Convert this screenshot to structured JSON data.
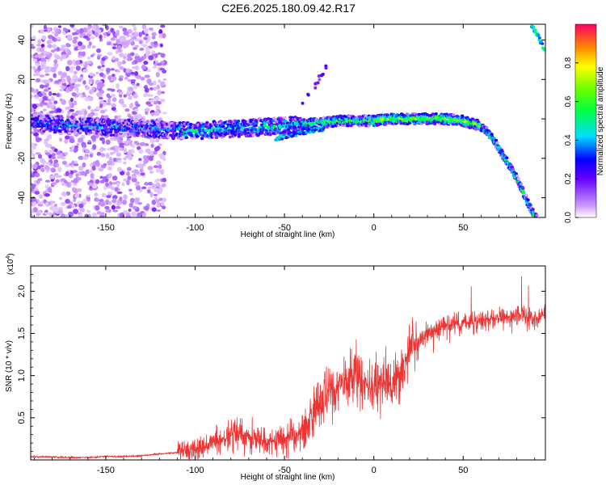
{
  "title": "C2E6.2025.180.09.42.R17",
  "chart_data": [
    {
      "type": "heatmap",
      "xlabel": "Height of straight line (km)",
      "ylabel": "Frequency (Hz)",
      "xlim": [
        -192,
        96
      ],
      "ylim": [
        -50,
        48
      ],
      "xticks": [
        -150,
        -100,
        -50,
        0,
        50
      ],
      "yticks": [
        -40,
        -20,
        0,
        20,
        40
      ],
      "grid": false,
      "colorbar": {
        "label": "Normalized spectral amplitude",
        "range": [
          0,
          1
        ],
        "ticks": [
          0.0,
          0.2,
          0.4,
          0.6,
          0.8
        ],
        "tick_labels": [
          "0.0",
          "0.2",
          "0.4",
          "0.6",
          "0.8"
        ]
      },
      "ridge": {
        "x": [
          -192,
          -170,
          -150,
          -130,
          -110,
          -100,
          -80,
          -60,
          -40,
          -30,
          -20,
          -10,
          0,
          10,
          20,
          30,
          40,
          50,
          58,
          63,
          68,
          72,
          76,
          80,
          84,
          88,
          92
        ],
        "y": [
          -2,
          -3,
          -4,
          -5,
          -6,
          -6,
          -5,
          -4,
          -3,
          -2,
          -1,
          -1,
          -1,
          0,
          0,
          0,
          0,
          -1,
          -3,
          -6,
          -12,
          -18,
          -24,
          -30,
          -38,
          -46,
          -52
        ]
      },
      "upper_branch": {
        "x": [
          88,
          92,
          96
        ],
        "y": [
          48,
          42,
          34
        ]
      },
      "lower_branch": {
        "x": [
          -55,
          -45,
          -35,
          -28
        ],
        "y": [
          -10,
          -8,
          -6,
          -5
        ]
      }
    },
    {
      "type": "line",
      "xlabel": "Height of straight line (km)",
      "ylabel": "SNR (10 * v/v)",
      "yscale_label": "(x10",
      "yscale_exp": "4",
      "xlim": [
        -192,
        96
      ],
      "ylim": [
        0,
        2.3
      ],
      "xticks": [
        -150,
        -100,
        -50,
        0,
        50
      ],
      "yticks": [
        0.5,
        1.0,
        1.5,
        2.0
      ],
      "ytick_labels": [
        "0.5",
        "1.0",
        "1.5",
        "2.0"
      ],
      "color": "#ee3333",
      "series": [
        {
          "x": [
            -192,
            -175,
            -160,
            -150,
            -140,
            -130,
            -120,
            -110,
            -100,
            -95,
            -90,
            -85,
            -80,
            -75,
            -70,
            -65,
            -60,
            -55,
            -50,
            -45,
            -40,
            -35,
            -30,
            -25,
            -20,
            -15,
            -10,
            -5,
            0,
            5,
            10,
            15,
            20,
            25,
            30,
            40,
            50,
            60,
            70,
            80,
            90,
            96
          ],
          "y": [
            0.04,
            0.03,
            0.03,
            0.04,
            0.04,
            0.05,
            0.07,
            0.09,
            0.12,
            0.16,
            0.2,
            0.24,
            0.28,
            0.3,
            0.27,
            0.25,
            0.22,
            0.22,
            0.25,
            0.28,
            0.35,
            0.5,
            0.65,
            0.78,
            0.85,
            0.95,
            1.05,
            0.9,
            0.8,
            0.95,
            0.9,
            1.05,
            1.3,
            1.4,
            1.5,
            1.6,
            1.62,
            1.65,
            1.68,
            1.7,
            1.68,
            1.72
          ]
        }
      ]
    }
  ]
}
